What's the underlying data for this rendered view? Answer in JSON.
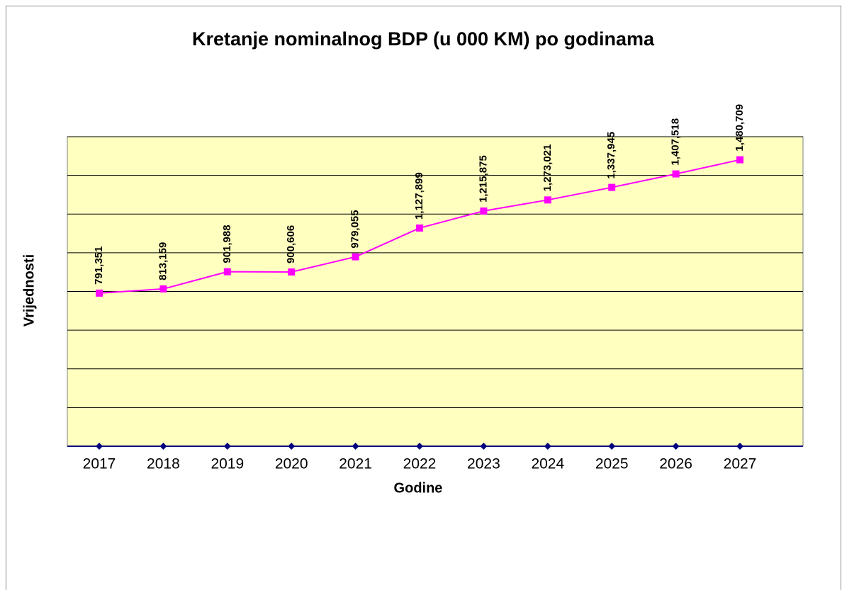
{
  "chart_data": {
    "type": "line",
    "title": "Kretanje nominalnog BDP (u 000 KM) po godinama",
    "xlabel": "Godine",
    "ylabel": "Vrijednosti",
    "categories": [
      "2017",
      "2018",
      "2019",
      "2020",
      "2021",
      "2022",
      "2023",
      "2024",
      "2025",
      "2026",
      "2027"
    ],
    "series": [
      {
        "color": "#ff00ff",
        "marker": "square",
        "values": [
          791351,
          813159,
          901988,
          900606,
          979055,
          1127899,
          1215875,
          1273021,
          1337945,
          1407518,
          1480709
        ],
        "value_labels": [
          "791,351",
          "813,159",
          "901,988",
          "900,606",
          "979,055",
          "1,127,899",
          "1,215,875",
          "1,273,021",
          "1,337,945",
          "1,407,518",
          "1,480,709"
        ]
      },
      {
        "color": "#000080",
        "marker": "diamond",
        "values": [
          0,
          0,
          0,
          0,
          0,
          0,
          0,
          0,
          0,
          0,
          0
        ]
      }
    ],
    "ylim": [
      0,
      1600000
    ],
    "yticks": [
      0,
      200000,
      400000,
      600000,
      800000,
      1000000,
      1200000,
      1400000,
      1600000
    ],
    "tick_labels": false,
    "grid": true,
    "background": "#ffffc0"
  }
}
